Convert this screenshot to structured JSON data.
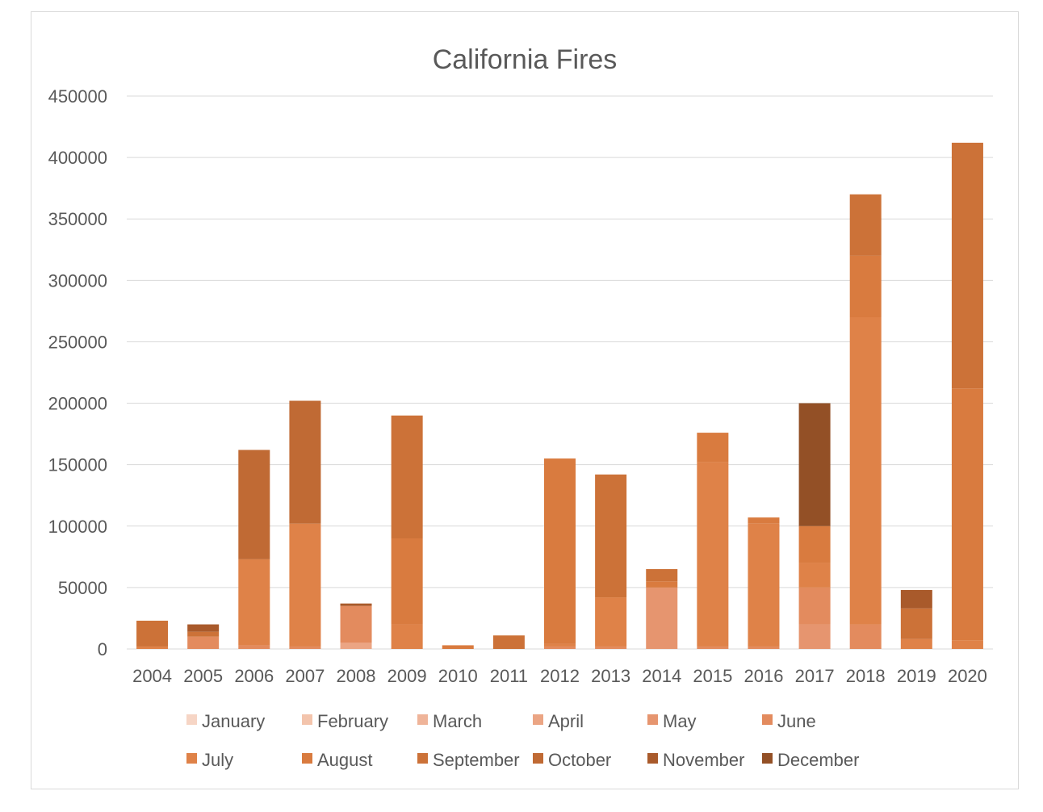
{
  "chart_data": {
    "type": "bar",
    "stacked": true,
    "title": "California Fires",
    "xlabel": "",
    "ylabel": "",
    "ylim": [
      0,
      450000
    ],
    "yticks": [
      0,
      50000,
      100000,
      150000,
      200000,
      250000,
      300000,
      350000,
      400000,
      450000
    ],
    "grid": true,
    "legend": "bottom",
    "categories": [
      "2004",
      "2005",
      "2006",
      "2007",
      "2008",
      "2009",
      "2010",
      "2011",
      "2012",
      "2013",
      "2014",
      "2015",
      "2016",
      "2017",
      "2018",
      "2019",
      "2020"
    ],
    "series": [
      {
        "name": "January",
        "color": "#f6d5c5",
        "values": [
          0,
          0,
          0,
          0,
          0,
          0,
          0,
          0,
          0,
          0,
          0,
          0,
          0,
          0,
          0,
          0,
          0
        ]
      },
      {
        "name": "February",
        "color": "#f3c4ac",
        "values": [
          0,
          0,
          0,
          0,
          0,
          0,
          0,
          0,
          0,
          0,
          0,
          0,
          0,
          0,
          0,
          0,
          0
        ]
      },
      {
        "name": "March",
        "color": "#efb499",
        "values": [
          0,
          0,
          0,
          0,
          0,
          0,
          0,
          0,
          0,
          0,
          0,
          0,
          0,
          0,
          0,
          0,
          0
        ]
      },
      {
        "name": "April",
        "color": "#eba584",
        "values": [
          0,
          0,
          0,
          0,
          5000,
          0,
          0,
          0,
          0,
          0,
          0,
          0,
          0,
          0,
          0,
          0,
          0
        ]
      },
      {
        "name": "May",
        "color": "#e6956f",
        "values": [
          0,
          0,
          0,
          0,
          0,
          0,
          0,
          0,
          0,
          0,
          50000,
          0,
          0,
          20000,
          0,
          0,
          0
        ]
      },
      {
        "name": "June",
        "color": "#e38b5e",
        "values": [
          0,
          10000,
          3000,
          2000,
          30000,
          0,
          0,
          0,
          2000,
          2000,
          0,
          2000,
          2000,
          30000,
          20000,
          0,
          0
        ]
      },
      {
        "name": "July",
        "color": "#df8248",
        "values": [
          2000,
          0,
          70000,
          100000,
          0,
          20000,
          0,
          0,
          2000,
          40000,
          0,
          150000,
          100000,
          20000,
          250000,
          8000,
          7000
        ]
      },
      {
        "name": "August",
        "color": "#d97b3f",
        "values": [
          0,
          0,
          0,
          0,
          0,
          70000,
          3000,
          0,
          151000,
          0,
          5000,
          24000,
          5000,
          30000,
          50000,
          0,
          205000
        ]
      },
      {
        "name": "September",
        "color": "#cc7238",
        "values": [
          21000,
          4000,
          0,
          0,
          0,
          100000,
          0,
          11000,
          0,
          100000,
          10000,
          0,
          0,
          0,
          50000,
          25000,
          200000
        ]
      },
      {
        "name": "October",
        "color": "#c06a34",
        "values": [
          0,
          0,
          89000,
          100000,
          0,
          0,
          0,
          0,
          0,
          0,
          0,
          0,
          0,
          0,
          0,
          0,
          0
        ]
      },
      {
        "name": "November",
        "color": "#a95a2b",
        "values": [
          0,
          6000,
          0,
          0,
          2000,
          0,
          0,
          0,
          0,
          0,
          0,
          0,
          0,
          0,
          0,
          15000,
          0
        ]
      },
      {
        "name": "December",
        "color": "#935026",
        "values": [
          0,
          0,
          0,
          0,
          0,
          0,
          0,
          0,
          0,
          0,
          0,
          0,
          0,
          100000,
          0,
          0,
          0
        ]
      }
    ]
  }
}
